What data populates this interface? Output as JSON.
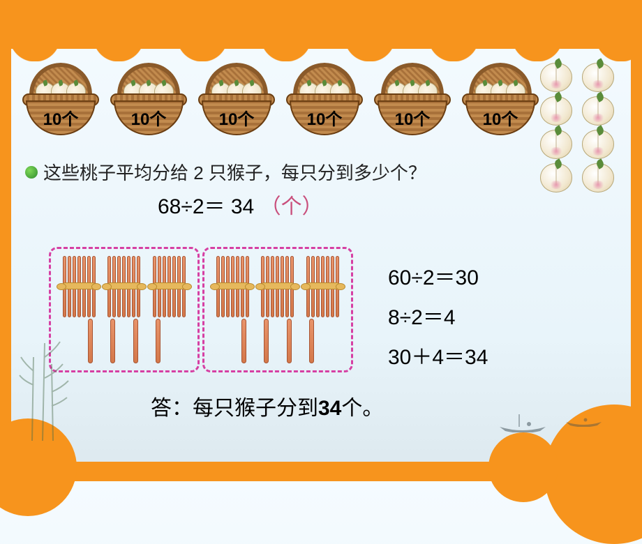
{
  "frame": {
    "color": "#f7941d"
  },
  "baskets": {
    "count": 6,
    "label": "10个",
    "labels": [
      "10个",
      "10个",
      "10个",
      "10个",
      "10个",
      "10个"
    ]
  },
  "loose_peaches": {
    "count": 8
  },
  "question": {
    "bullet_color": "#2e8b2e",
    "text": "这些桃子平均分给 2 只猴子，每只分到多少个？",
    "fontsize": 26
  },
  "main_equation": {
    "lhs": "68÷2＝",
    "result": "34",
    "unit": "（个）",
    "unit_color": "#c94f7c",
    "fontsize": 30
  },
  "stick_diagram": {
    "border_color": "#d63fa3",
    "groups": 2,
    "bundles_per_group": 3,
    "sticks_per_bundle": 7,
    "singles_per_group": 4,
    "stick_color": "#d4784a"
  },
  "side_equations": {
    "lines": [
      "60÷2＝30",
      "8÷2＝4",
      "30＋4＝34"
    ],
    "fontsize": 30
  },
  "answer": {
    "prefix": "答：每只猴子分到",
    "value": "34",
    "suffix": "个。",
    "fontsize": 30
  }
}
